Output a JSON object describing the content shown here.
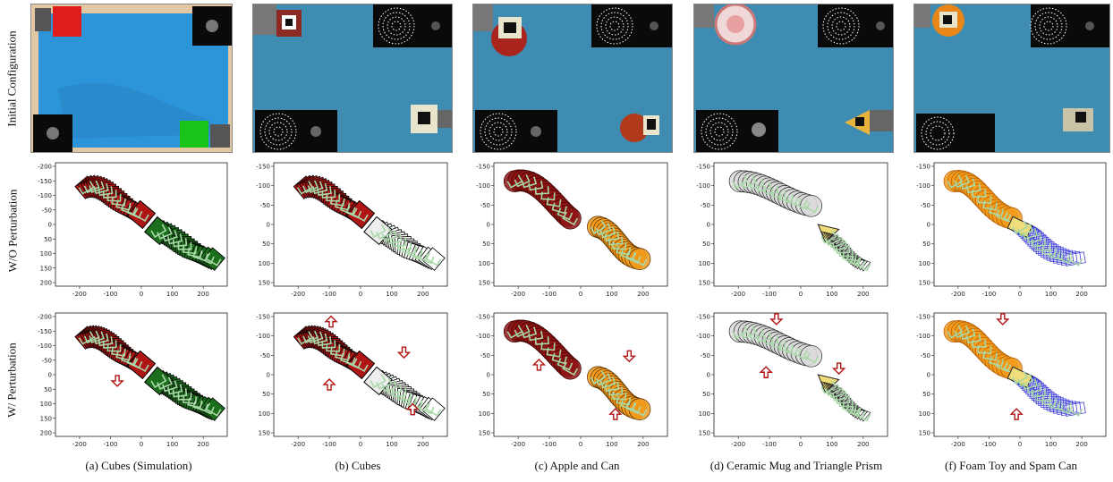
{
  "row_labels": [
    "Initial Configuration",
    "W/O Perturbation",
    "W/ Perturbation"
  ],
  "captions": [
    "(a) Cubes (Simulation)",
    "(b) Cubes",
    "(c) Apple and Can",
    "(d) Ceramic Mug and Triangle Prism",
    "(f) Foam Toy and Spam Can"
  ],
  "colors": {
    "table_blue": "#2c94d8",
    "photo_blue": "#3e8cb2",
    "red": "#b01515",
    "green": "#1b6e1b",
    "orange": "#f29a1a",
    "grey": "#dadada",
    "yellow": "#f0dc78",
    "blue_lines": "#2a2ad6",
    "gripper": "#a8d8a8"
  },
  "plots": {
    "sim": {
      "xticks": [
        "-200",
        "-100",
        "0",
        "100",
        "200"
      ],
      "yticks": [
        "-200",
        "-150",
        "-100",
        "-50",
        "0",
        "50",
        "100",
        "150",
        "200"
      ]
    },
    "real": {
      "xticks": [
        "-200",
        "-100",
        "0",
        "100",
        "200"
      ],
      "yticks": [
        "-150",
        "-100",
        "-50",
        "0",
        "50",
        "100",
        "150"
      ]
    }
  }
}
